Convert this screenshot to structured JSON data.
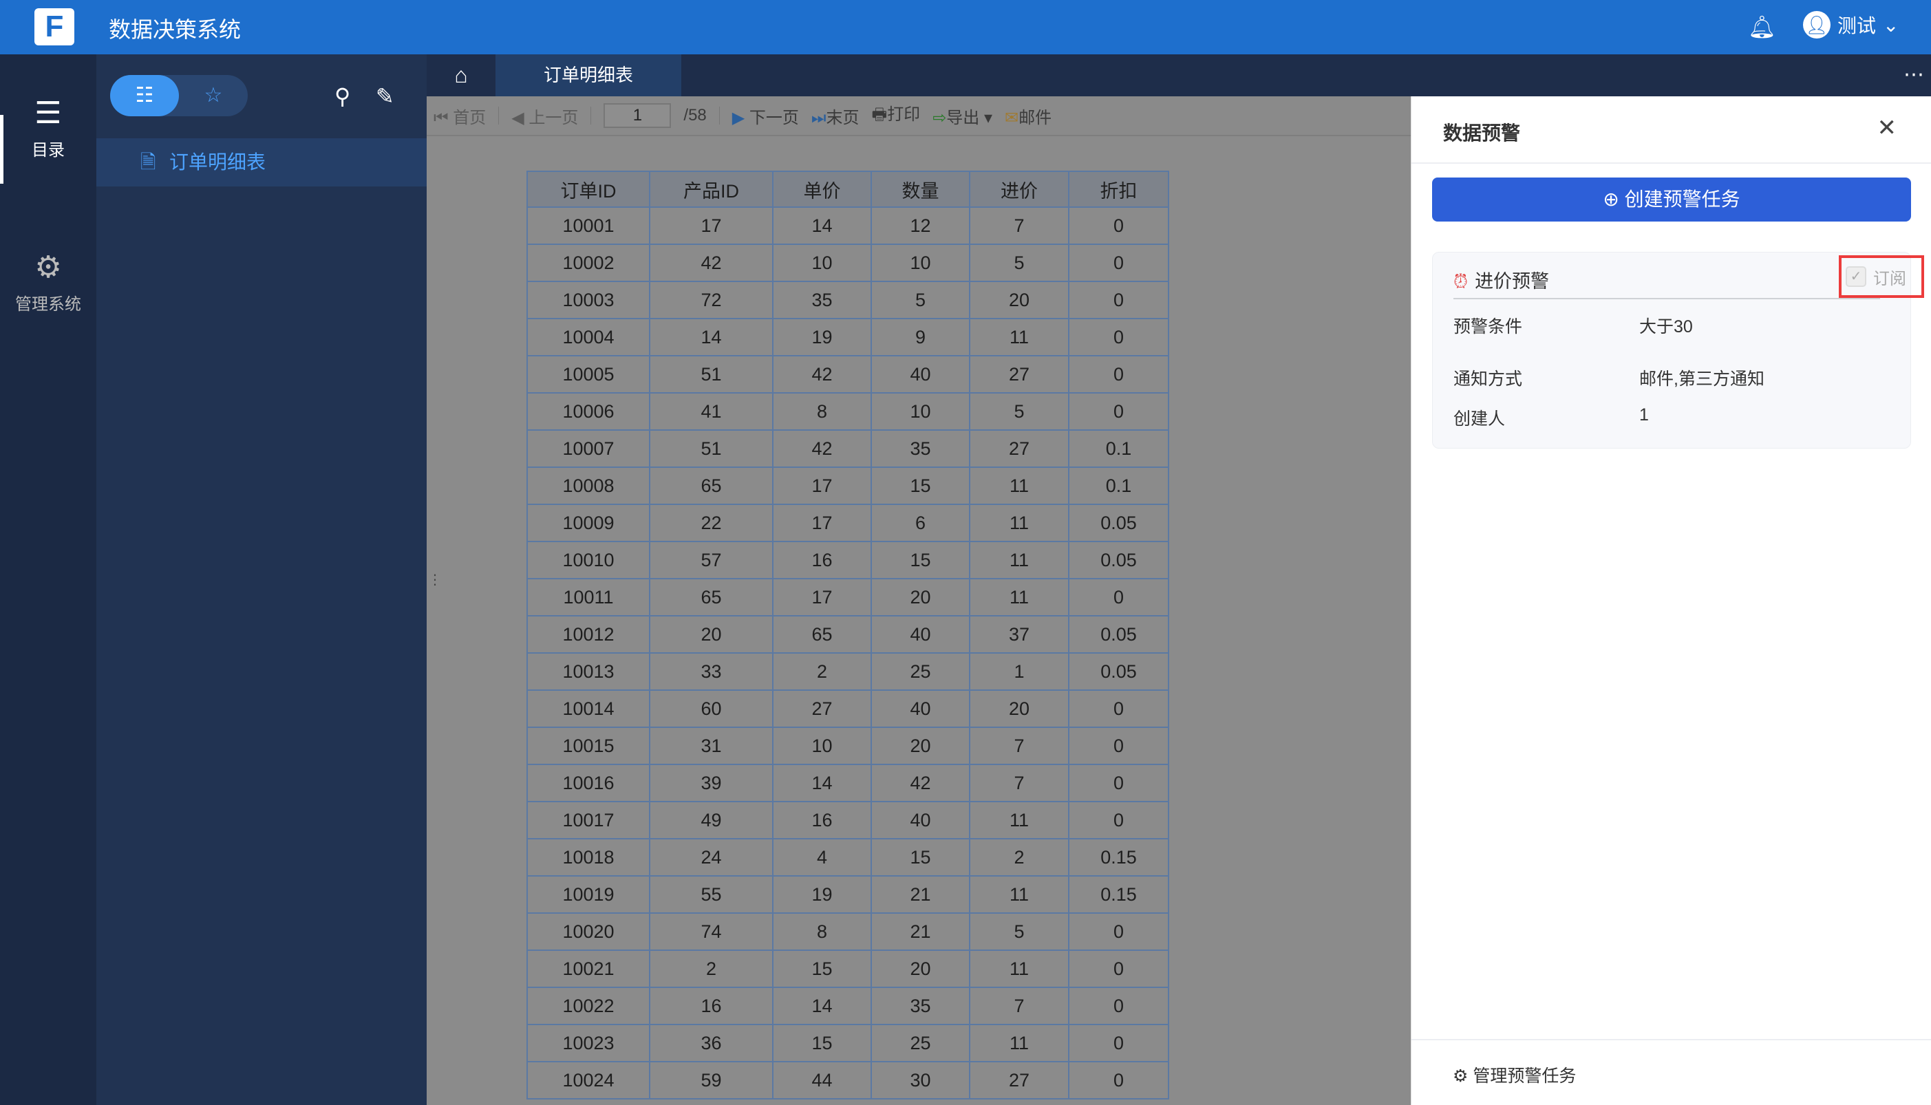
{
  "header": {
    "app_title": "数据决策系统",
    "user": "测试"
  },
  "rail": [
    {
      "label": "目录",
      "icon": "list-icon"
    },
    {
      "label": "管理系统",
      "icon": "gear-icon"
    }
  ],
  "sidebar": {
    "items": [
      {
        "label": "订单明细表",
        "icon": "document-icon"
      }
    ]
  },
  "tabs": [
    {
      "label": "订单明细表"
    }
  ],
  "toolbar": {
    "first": "首页",
    "prev": "上一页",
    "page": "1",
    "total": "/58",
    "next": "下一页",
    "last": "末页",
    "print": "打印",
    "export": "导出",
    "mail": "邮件"
  },
  "table": {
    "columns": [
      "订单ID",
      "产品ID",
      "单价",
      "数量",
      "进价",
      "折扣"
    ],
    "rows": [
      [
        "10001",
        "17",
        "14",
        "12",
        "7",
        "0"
      ],
      [
        "10002",
        "42",
        "10",
        "10",
        "5",
        "0"
      ],
      [
        "10003",
        "72",
        "35",
        "5",
        "20",
        "0"
      ],
      [
        "10004",
        "14",
        "19",
        "9",
        "11",
        "0"
      ],
      [
        "10005",
        "51",
        "42",
        "40",
        "27",
        "0"
      ],
      [
        "10006",
        "41",
        "8",
        "10",
        "5",
        "0"
      ],
      [
        "10007",
        "51",
        "42",
        "35",
        "27",
        "0.1"
      ],
      [
        "10008",
        "65",
        "17",
        "15",
        "11",
        "0.1"
      ],
      [
        "10009",
        "22",
        "17",
        "6",
        "11",
        "0.05"
      ],
      [
        "10010",
        "57",
        "16",
        "15",
        "11",
        "0.05"
      ],
      [
        "10011",
        "65",
        "17",
        "20",
        "11",
        "0"
      ],
      [
        "10012",
        "20",
        "65",
        "40",
        "37",
        "0.05"
      ],
      [
        "10013",
        "33",
        "2",
        "25",
        "1",
        "0.05"
      ],
      [
        "10014",
        "60",
        "27",
        "40",
        "20",
        "0"
      ],
      [
        "10015",
        "31",
        "10",
        "20",
        "7",
        "0"
      ],
      [
        "10016",
        "39",
        "14",
        "42",
        "7",
        "0"
      ],
      [
        "10017",
        "49",
        "16",
        "40",
        "11",
        "0"
      ],
      [
        "10018",
        "24",
        "4",
        "15",
        "2",
        "0.15"
      ],
      [
        "10019",
        "55",
        "19",
        "21",
        "11",
        "0.15"
      ],
      [
        "10020",
        "74",
        "8",
        "21",
        "5",
        "0"
      ],
      [
        "10021",
        "2",
        "15",
        "20",
        "11",
        "0"
      ],
      [
        "10022",
        "16",
        "14",
        "35",
        "7",
        "0"
      ],
      [
        "10023",
        "36",
        "15",
        "25",
        "11",
        "0"
      ],
      [
        "10024",
        "59",
        "44",
        "30",
        "27",
        "0"
      ]
    ]
  },
  "panel": {
    "title": "数据预警",
    "create_label": "创建预警任务",
    "alert": {
      "name": "进价预警",
      "subscribe_label": "订阅",
      "subscribed": true,
      "fields": [
        {
          "label": "预警条件",
          "value": "大于30"
        },
        {
          "label": "通知方式",
          "value": "邮件,第三方通知"
        },
        {
          "label": "创建人",
          "value": "1"
        }
      ]
    },
    "manage_label": "管理预警任务"
  },
  "colors": {
    "topbar": "#1e6fcd",
    "accent": "#2d5fd8",
    "highlight": "#ec3c3c"
  }
}
